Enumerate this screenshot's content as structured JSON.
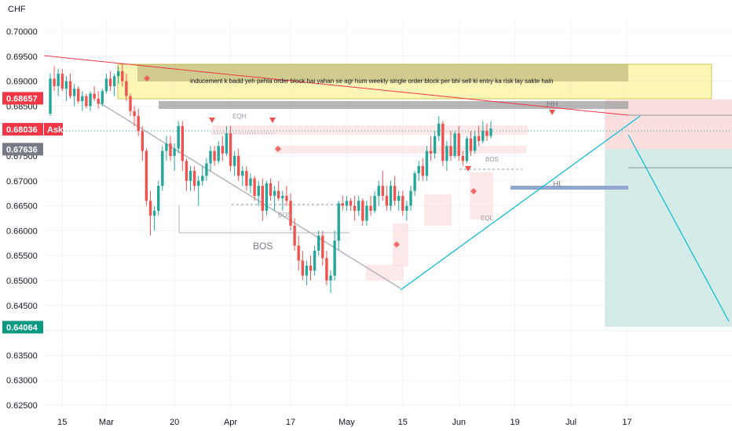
{
  "currency": "CHF",
  "colors": {
    "up": "#26a69a",
    "down": "#ef5350",
    "grid": "#f0f3fa",
    "ask": "#f23645",
    "tag_high": "#f23645",
    "tag_low": "#089981",
    "tag_mid": "#787b86",
    "trend_teal": "#00bcd4",
    "trend_red": "#f23645",
    "trend_grey": "#b2b5be",
    "ob_yellow": "#f7ec7a",
    "ob_grey": "#9e9e9e",
    "ob_blue": "#90a8d0",
    "zone_pink": "#fbdada",
    "zone_green": "#cfe9e6"
  },
  "price_tags": [
    {
      "value": "0.68657",
      "kind": "high"
    },
    {
      "value": "0.68036",
      "kind": "ask",
      "label": "Ask"
    },
    {
      "value": "0.67636",
      "kind": "mid"
    },
    {
      "value": "0.64064",
      "kind": "low"
    }
  ],
  "annotation_text": "inducement k badd  yeh pehla order block hai yahan se agr hum weekly single order block per bhi sell ki entry ka  risk lay sakte hain",
  "labels": {
    "eqh": "EQH",
    "bos_small_1": "BOS",
    "bos_big": "BOS",
    "bos_right": "BOS",
    "eql": "EQL",
    "hh": "HH",
    "hl": "HL"
  },
  "chart_data": {
    "type": "candlestick",
    "title": "",
    "ylabel": "CHF",
    "ylim": [
      0.623,
      0.704
    ],
    "y_ticks": [
      "0.70000",
      "0.69500",
      "0.69000",
      "0.68500",
      "0.68000",
      "0.67500",
      "0.67000",
      "0.66500",
      "0.66000",
      "0.65500",
      "0.65000",
      "0.64500",
      "0.64000",
      "0.63500",
      "0.63000",
      "0.62500"
    ],
    "x_ticks": [
      "15",
      "Mar",
      "20",
      "Apr",
      "17",
      "May",
      "15",
      "Jun",
      "19",
      "Jul",
      "17"
    ],
    "x_tick_index": [
      3,
      14,
      31,
      45,
      60,
      74,
      88,
      102,
      116,
      130,
      144
    ],
    "bar_count": 150,
    "candles": [
      [
        0.6835,
        0.6915,
        0.683,
        0.6905
      ],
      [
        0.6905,
        0.693,
        0.688,
        0.689
      ],
      [
        0.689,
        0.6925,
        0.687,
        0.6915
      ],
      [
        0.6915,
        0.6925,
        0.688,
        0.6885
      ],
      [
        0.6885,
        0.691,
        0.686,
        0.69
      ],
      [
        0.69,
        0.6915,
        0.6865,
        0.687
      ],
      [
        0.687,
        0.6895,
        0.685,
        0.6885
      ],
      [
        0.6885,
        0.689,
        0.6855,
        0.686
      ],
      [
        0.686,
        0.688,
        0.684,
        0.687
      ],
      [
        0.687,
        0.6875,
        0.6845,
        0.685
      ],
      [
        0.685,
        0.688,
        0.684,
        0.6875
      ],
      [
        0.6875,
        0.689,
        0.686,
        0.6865
      ],
      [
        0.6865,
        0.688,
        0.6845,
        0.6855
      ],
      [
        0.6855,
        0.6885,
        0.685,
        0.688
      ],
      [
        0.688,
        0.6915,
        0.6875,
        0.6905
      ],
      [
        0.6905,
        0.692,
        0.688,
        0.689
      ],
      [
        0.689,
        0.6915,
        0.687,
        0.691
      ],
      [
        0.691,
        0.693,
        0.6895,
        0.692
      ],
      [
        0.692,
        0.6935,
        0.689,
        0.69
      ],
      [
        0.69,
        0.6915,
        0.686,
        0.687
      ],
      [
        0.687,
        0.6875,
        0.683,
        0.684
      ],
      [
        0.684,
        0.685,
        0.681,
        0.683
      ],
      [
        0.683,
        0.6845,
        0.679,
        0.68
      ],
      [
        0.68,
        0.681,
        0.674,
        0.676
      ],
      [
        0.676,
        0.6765,
        0.665,
        0.666
      ],
      [
        0.666,
        0.668,
        0.659,
        0.663
      ],
      [
        0.663,
        0.665,
        0.66,
        0.664
      ],
      [
        0.664,
        0.67,
        0.663,
        0.669
      ],
      [
        0.669,
        0.677,
        0.668,
        0.676
      ],
      [
        0.676,
        0.679,
        0.674,
        0.6775
      ],
      [
        0.6775,
        0.679,
        0.674,
        0.675
      ],
      [
        0.675,
        0.6775,
        0.672,
        0.6765
      ],
      [
        0.6765,
        0.682,
        0.6755,
        0.681
      ],
      [
        0.681,
        0.682,
        0.672,
        0.674
      ],
      [
        0.674,
        0.6745,
        0.668,
        0.67
      ],
      [
        0.67,
        0.673,
        0.668,
        0.672
      ],
      [
        0.672,
        0.673,
        0.668,
        0.669
      ],
      [
        0.669,
        0.671,
        0.665,
        0.67
      ],
      [
        0.67,
        0.673,
        0.669,
        0.671
      ],
      [
        0.671,
        0.6745,
        0.67,
        0.6735
      ],
      [
        0.6735,
        0.677,
        0.672,
        0.676
      ],
      [
        0.676,
        0.677,
        0.673,
        0.674
      ],
      [
        0.674,
        0.678,
        0.6735,
        0.677
      ],
      [
        0.677,
        0.679,
        0.674,
        0.6755
      ],
      [
        0.6755,
        0.681,
        0.675,
        0.6795
      ],
      [
        0.6795,
        0.681,
        0.672,
        0.673
      ],
      [
        0.673,
        0.676,
        0.671,
        0.675
      ],
      [
        0.675,
        0.6765,
        0.67,
        0.671
      ],
      [
        0.671,
        0.673,
        0.669,
        0.672
      ],
      [
        0.672,
        0.673,
        0.668,
        0.669
      ],
      [
        0.669,
        0.6715,
        0.6675,
        0.6705
      ],
      [
        0.6705,
        0.671,
        0.666,
        0.667
      ],
      [
        0.667,
        0.67,
        0.665,
        0.669
      ],
      [
        0.669,
        0.6705,
        0.662,
        0.664
      ],
      [
        0.664,
        0.67,
        0.663,
        0.6695
      ],
      [
        0.6695,
        0.6705,
        0.666,
        0.667
      ],
      [
        0.667,
        0.669,
        0.664,
        0.668
      ],
      [
        0.668,
        0.67,
        0.666,
        0.6665
      ],
      [
        0.6665,
        0.668,
        0.664,
        0.667
      ],
      [
        0.667,
        0.669,
        0.665,
        0.666
      ],
      [
        0.666,
        0.6675,
        0.66,
        0.661
      ],
      [
        0.661,
        0.6625,
        0.656,
        0.657
      ],
      [
        0.657,
        0.659,
        0.652,
        0.654
      ],
      [
        0.654,
        0.656,
        0.65,
        0.651
      ],
      [
        0.651,
        0.654,
        0.649,
        0.653
      ],
      [
        0.653,
        0.655,
        0.65,
        0.652
      ],
      [
        0.652,
        0.657,
        0.651,
        0.656
      ],
      [
        0.656,
        0.66,
        0.655,
        0.659
      ],
      [
        0.659,
        0.66,
        0.653,
        0.6545
      ],
      [
        0.6545,
        0.656,
        0.649,
        0.65
      ],
      [
        0.65,
        0.652,
        0.6475,
        0.651
      ],
      [
        0.651,
        0.66,
        0.65,
        0.658
      ],
      [
        0.658,
        0.666,
        0.656,
        0.6655
      ],
      [
        0.6655,
        0.667,
        0.664,
        0.665
      ],
      [
        0.665,
        0.667,
        0.664,
        0.666
      ],
      [
        0.666,
        0.6665,
        0.664,
        0.665
      ],
      [
        0.665,
        0.667,
        0.662,
        0.664
      ],
      [
        0.664,
        0.667,
        0.663,
        0.666
      ],
      [
        0.666,
        0.6665,
        0.661,
        0.662
      ],
      [
        0.662,
        0.666,
        0.661,
        0.665
      ],
      [
        0.665,
        0.667,
        0.663,
        0.664
      ],
      [
        0.664,
        0.668,
        0.6635,
        0.667
      ],
      [
        0.667,
        0.67,
        0.665,
        0.669
      ],
      [
        0.669,
        0.672,
        0.666,
        0.667
      ],
      [
        0.667,
        0.669,
        0.664,
        0.665
      ],
      [
        0.665,
        0.67,
        0.664,
        0.669
      ],
      [
        0.669,
        0.671,
        0.665,
        0.666
      ],
      [
        0.666,
        0.668,
        0.664,
        0.667
      ],
      [
        0.667,
        0.668,
        0.663,
        0.664
      ],
      [
        0.664,
        0.666,
        0.662,
        0.665
      ],
      [
        0.665,
        0.669,
        0.664,
        0.668
      ],
      [
        0.668,
        0.672,
        0.667,
        0.6715
      ],
      [
        0.6715,
        0.674,
        0.67,
        0.673
      ],
      [
        0.673,
        0.6745,
        0.67,
        0.671
      ],
      [
        0.671,
        0.677,
        0.67,
        0.676
      ],
      [
        0.676,
        0.679,
        0.674,
        0.6755
      ],
      [
        0.6755,
        0.68,
        0.6745,
        0.679
      ],
      [
        0.679,
        0.683,
        0.678,
        0.6815
      ],
      [
        0.6815,
        0.682,
        0.673,
        0.674
      ],
      [
        0.674,
        0.678,
        0.672,
        0.677
      ],
      [
        0.677,
        0.68,
        0.674,
        0.675
      ],
      [
        0.675,
        0.68,
        0.6745,
        0.6795
      ],
      [
        0.6795,
        0.681,
        0.674,
        0.675
      ],
      [
        0.675,
        0.676,
        0.673,
        0.674
      ],
      [
        0.674,
        0.679,
        0.6735,
        0.6785
      ],
      [
        0.6785,
        0.68,
        0.675,
        0.676
      ],
      [
        0.676,
        0.68,
        0.6755,
        0.679
      ],
      [
        0.679,
        0.681,
        0.677,
        0.678
      ],
      [
        0.678,
        0.682,
        0.6775,
        0.68
      ],
      [
        0.68,
        0.6815,
        0.678,
        0.679
      ],
      [
        0.679,
        0.682,
        0.6785,
        0.6805
      ]
    ]
  }
}
